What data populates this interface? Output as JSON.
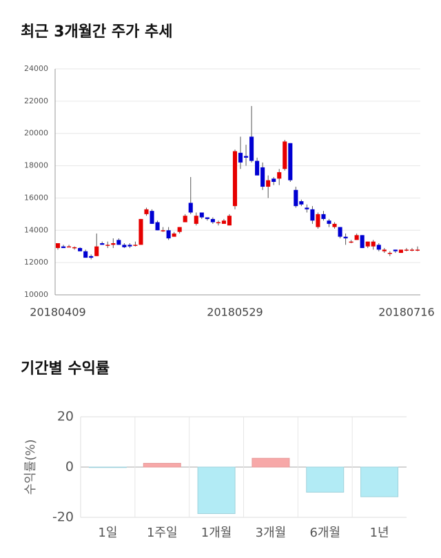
{
  "chart_data": [
    {
      "type": "candlestick",
      "title": "최근 3개월간 주가 추세",
      "categories": [
        "20180409",
        null,
        null,
        null,
        null,
        null,
        null,
        null,
        null,
        null,
        null,
        null,
        null,
        null,
        null,
        null,
        null,
        null,
        null,
        null,
        null,
        null,
        null,
        null,
        null,
        null,
        null,
        null,
        null,
        null,
        null,
        null,
        "20180529",
        null,
        null,
        null,
        null,
        null,
        null,
        null,
        null,
        null,
        null,
        null,
        null,
        null,
        null,
        null,
        null,
        null,
        null,
        null,
        null,
        null,
        null,
        null,
        null,
        null,
        null,
        null,
        null,
        null,
        null,
        "20180716",
        null,
        null
      ],
      "open": [
        12900,
        13000,
        13000,
        12950,
        12900,
        12700,
        12400,
        12400,
        13200,
        13100,
        13100,
        13400,
        13100,
        13100,
        13100,
        13100,
        15000,
        15200,
        14500,
        14000,
        14000,
        13600,
        13900,
        14500,
        15700,
        14400,
        15100,
        14800,
        14700,
        14500,
        14400,
        14300,
        15500,
        18800,
        18600,
        19800,
        18300,
        17900,
        16700,
        17200,
        17200,
        17800,
        19400,
        16500,
        15800,
        15400,
        15300,
        14200,
        15000,
        14600,
        14200,
        14200,
        13600,
        13300,
        13400,
        13700,
        13000,
        13000,
        13100,
        12700,
        12600,
        12800,
        12600,
        12800,
        12800,
        12800
      ],
      "high": [
        13100,
        13100,
        13100,
        13000,
        12950,
        12800,
        12500,
        13800,
        13300,
        13300,
        13500,
        13500,
        13200,
        13200,
        13300,
        14700,
        15400,
        15300,
        14600,
        14200,
        14200,
        13900,
        14200,
        15000,
        17300,
        15100,
        15100,
        14800,
        14800,
        14600,
        14700,
        15000,
        19000,
        19800,
        19300,
        21700,
        18500,
        18200,
        17400,
        17300,
        17800,
        19600,
        19400,
        16700,
        15900,
        15600,
        15500,
        15100,
        15200,
        14700,
        14500,
        14200,
        13800,
        13400,
        13800,
        13700,
        13300,
        13400,
        13200,
        12900,
        12700,
        12800,
        12800,
        12900,
        12900,
        13000
      ],
      "low": [
        12800,
        12900,
        12950,
        12800,
        12700,
        12300,
        12200,
        12400,
        13100,
        12900,
        12900,
        13100,
        12900,
        12900,
        13000,
        13100,
        14900,
        14400,
        14000,
        13900,
        13400,
        13600,
        13800,
        14500,
        15000,
        14300,
        14700,
        14600,
        14400,
        14300,
        14400,
        14300,
        15300,
        17800,
        18000,
        18200,
        17400,
        16500,
        16000,
        16800,
        16800,
        17700,
        17000,
        15400,
        15500,
        15100,
        14400,
        14100,
        14600,
        14200,
        14100,
        13500,
        13100,
        13200,
        13400,
        12900,
        12900,
        12800,
        12700,
        12600,
        12400,
        12600,
        12600,
        12700,
        12700,
        12700
      ],
      "close": [
        13200,
        12900,
        13000,
        12950,
        12700,
        12300,
        12300,
        13000,
        13100,
        13100,
        13200,
        13100,
        12950,
        13000,
        13100,
        14700,
        15300,
        14400,
        14000,
        14000,
        13500,
        13800,
        14200,
        14900,
        15100,
        14900,
        14800,
        14700,
        14500,
        14500,
        14600,
        14900,
        18900,
        18200,
        18500,
        18300,
        17400,
        16700,
        17100,
        17000,
        17600,
        19500,
        17100,
        15500,
        15600,
        15300,
        14600,
        15000,
        14700,
        14400,
        14400,
        13600,
        13500,
        13300,
        13700,
        12900,
        13300,
        13300,
        12800,
        12800,
        12600,
        12700,
        12800,
        12800,
        12800,
        12800
      ],
      "up_color": "#e60000",
      "down_color": "#0000d2",
      "ylim": [
        10000,
        24000
      ],
      "yticks": [
        10000,
        12000,
        14000,
        16000,
        18000,
        20000,
        22000,
        24000
      ],
      "grid": true
    },
    {
      "type": "bar",
      "title": "기간별 수익률",
      "ylabel": "수익률(%)",
      "categories": [
        "1일",
        "1주일",
        "1개월",
        "3개월",
        "6개월",
        "1년"
      ],
      "values": [
        -0.2,
        1.5,
        -18.5,
        3.5,
        -10,
        -11.8
      ],
      "positive_color": "#f7a8a8",
      "negative_color": "#b2ebf5",
      "ylim": [
        -20,
        20
      ],
      "yticks": [
        -20,
        0,
        20
      ],
      "grid": true
    }
  ]
}
